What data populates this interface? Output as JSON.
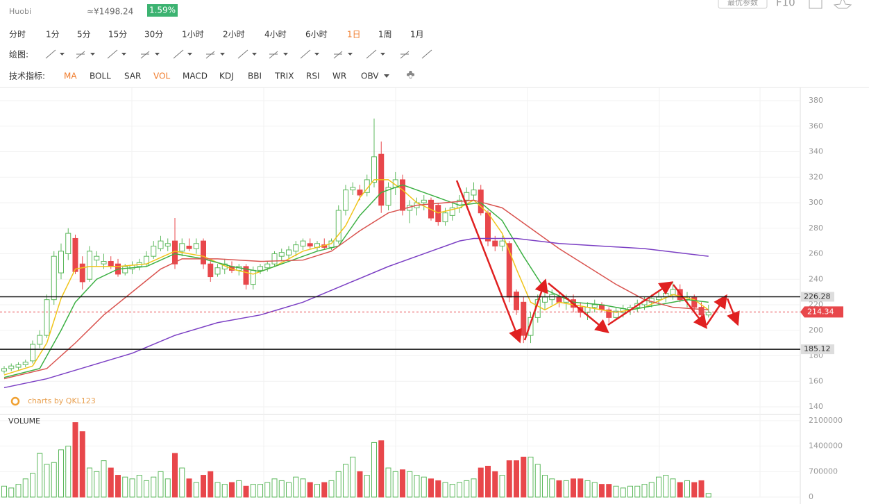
{
  "header": {
    "source": "Huobi",
    "cny": "≈¥1498.24",
    "change": "1.59%",
    "best_params": "最优参数",
    "f10": "F10"
  },
  "tabs": [
    "分时",
    "1分",
    "5分",
    "15分",
    "30分",
    "1小时",
    "2小时",
    "4小时",
    "6小时",
    "1日",
    "1周",
    "1月"
  ],
  "active_tab": 9,
  "draw_label": "绘图:",
  "indicator_label": "技术指标:",
  "indicators": [
    "MA",
    "BOLL",
    "SAR",
    "VOL",
    "MACD",
    "KDJ",
    "BBI",
    "TRIX",
    "RSI",
    "WR",
    "OBV"
  ],
  "active_indicators": [
    0,
    3
  ],
  "watermark": "charts by QKL123",
  "chart_data": {
    "type": "candlestick",
    "ylim": [
      140,
      380
    ],
    "yticks": [
      140,
      160,
      180,
      200,
      220,
      240,
      260,
      280,
      300,
      320,
      340,
      360,
      380
    ],
    "up_color": "#5cb85c",
    "down_color": "#e8474b",
    "candles": [
      [
        168,
        172,
        166,
        170
      ],
      [
        170,
        174,
        168,
        172
      ],
      [
        171,
        175,
        169,
        173
      ],
      [
        173,
        177,
        171,
        175
      ],
      [
        176,
        192,
        174,
        189
      ],
      [
        189,
        200,
        186,
        196
      ],
      [
        196,
        228,
        194,
        224
      ],
      [
        224,
        262,
        220,
        258
      ],
      [
        245,
        268,
        240,
        262
      ],
      [
        260,
        280,
        255,
        276
      ],
      [
        272,
        275,
        244,
        246
      ],
      [
        252,
        258,
        232,
        238
      ],
      [
        240,
        266,
        238,
        262
      ],
      [
        255,
        262,
        250,
        258
      ],
      [
        252,
        260,
        248,
        254
      ],
      [
        254,
        258,
        248,
        250
      ],
      [
        252,
        256,
        242,
        244
      ],
      [
        245,
        252,
        243,
        250
      ],
      [
        248,
        254,
        244,
        251
      ],
      [
        250,
        256,
        247,
        253
      ],
      [
        252,
        262,
        250,
        258
      ],
      [
        258,
        270,
        256,
        266
      ],
      [
        264,
        274,
        262,
        270
      ],
      [
        266,
        272,
        262,
        268
      ],
      [
        270,
        288,
        248,
        252
      ],
      [
        262,
        272,
        258,
        268
      ],
      [
        266,
        272,
        262,
        264
      ],
      [
        264,
        272,
        260,
        268
      ],
      [
        270,
        272,
        248,
        252
      ],
      [
        252,
        254,
        238,
        242
      ],
      [
        244,
        252,
        242,
        249
      ],
      [
        248,
        256,
        244,
        252
      ],
      [
        250,
        254,
        245,
        247
      ],
      [
        247,
        252,
        243,
        250
      ],
      [
        250,
        252,
        232,
        236
      ],
      [
        236,
        250,
        232,
        247
      ],
      [
        247,
        252,
        244,
        250
      ],
      [
        249,
        254,
        246,
        252
      ],
      [
        252,
        262,
        250,
        260
      ],
      [
        258,
        264,
        254,
        261
      ],
      [
        259,
        266,
        256,
        263
      ],
      [
        262,
        270,
        258,
        267
      ],
      [
        266,
        272,
        263,
        270
      ],
      [
        268,
        272,
        264,
        266
      ],
      [
        265,
        270,
        262,
        268
      ],
      [
        267,
        272,
        263,
        265
      ],
      [
        265,
        272,
        263,
        270
      ],
      [
        270,
        298,
        268,
        294
      ],
      [
        294,
        314,
        290,
        310
      ],
      [
        310,
        316,
        306,
        312
      ],
      [
        310,
        314,
        302,
        306
      ],
      [
        308,
        322,
        305,
        318
      ],
      [
        316,
        366,
        312,
        336
      ],
      [
        338,
        348,
        292,
        298
      ],
      [
        298,
        316,
        294,
        312
      ],
      [
        312,
        324,
        306,
        318
      ],
      [
        318,
        322,
        290,
        294
      ],
      [
        294,
        302,
        284,
        298
      ],
      [
        296,
        304,
        290,
        300
      ],
      [
        300,
        306,
        294,
        302
      ],
      [
        302,
        304,
        286,
        288
      ],
      [
        298,
        300,
        282,
        285
      ],
      [
        285,
        296,
        282,
        292
      ],
      [
        290,
        300,
        286,
        296
      ],
      [
        296,
        306,
        292,
        302
      ],
      [
        302,
        312,
        298,
        308
      ],
      [
        306,
        316,
        302,
        310
      ],
      [
        310,
        314,
        290,
        292
      ],
      [
        292,
        294,
        266,
        270
      ],
      [
        270,
        274,
        262,
        266
      ],
      [
        266,
        274,
        262,
        270
      ],
      [
        268,
        270,
        222,
        226
      ],
      [
        230,
        232,
        212,
        216
      ],
      [
        222,
        226,
        190,
        196
      ],
      [
        196,
        214,
        190,
        210
      ],
      [
        210,
        228,
        206,
        224
      ],
      [
        222,
        230,
        216,
        226
      ],
      [
        224,
        232,
        220,
        228
      ],
      [
        226,
        230,
        218,
        222
      ],
      [
        222,
        228,
        216,
        225
      ],
      [
        224,
        228,
        214,
        218
      ],
      [
        218,
        222,
        210,
        214
      ],
      [
        214,
        222,
        208,
        218
      ],
      [
        218,
        224,
        214,
        220
      ],
      [
        220,
        222,
        214,
        216
      ],
      [
        216,
        218,
        206,
        210
      ],
      [
        210,
        218,
        208,
        215
      ],
      [
        214,
        220,
        210,
        217
      ],
      [
        216,
        220,
        212,
        218
      ],
      [
        218,
        224,
        214,
        221
      ],
      [
        220,
        226,
        216,
        223
      ],
      [
        222,
        228,
        218,
        225
      ],
      [
        224,
        230,
        220,
        226
      ],
      [
        226,
        232,
        222,
        229
      ],
      [
        228,
        238,
        224,
        232
      ],
      [
        232,
        236,
        222,
        224
      ],
      [
        224,
        230,
        218,
        226
      ],
      [
        226,
        228,
        214,
        218
      ],
      [
        218,
        222,
        208,
        212
      ],
      [
        212,
        220,
        210,
        214
      ]
    ],
    "ma_lines": [
      {
        "color": "#f0c419",
        "points": [
          [
            0,
            165
          ],
          [
            4,
            172
          ],
          [
            6,
            190
          ],
          [
            8,
            225
          ],
          [
            10,
            248
          ],
          [
            12,
            250
          ],
          [
            16,
            250
          ],
          [
            20,
            252
          ],
          [
            24,
            262
          ],
          [
            28,
            258
          ],
          [
            32,
            248
          ],
          [
            35,
            244
          ],
          [
            38,
            250
          ],
          [
            42,
            262
          ],
          [
            46,
            268
          ],
          [
            48,
            282
          ],
          [
            50,
            304
          ],
          [
            52,
            318
          ],
          [
            54,
            318
          ],
          [
            56,
            310
          ],
          [
            58,
            300
          ],
          [
            61,
            292
          ],
          [
            64,
            296
          ],
          [
            66,
            302
          ],
          [
            68,
            292
          ],
          [
            70,
            276
          ],
          [
            72,
            248
          ],
          [
            74,
            222
          ],
          [
            76,
            216
          ],
          [
            78,
            222
          ],
          [
            82,
            218
          ],
          [
            86,
            214
          ],
          [
            90,
            218
          ],
          [
            94,
            228
          ],
          [
            97,
            224
          ],
          [
            99,
            216
          ]
        ]
      },
      {
        "color": "#3cb043",
        "points": [
          [
            0,
            163
          ],
          [
            5,
            170
          ],
          [
            8,
            200
          ],
          [
            10,
            222
          ],
          [
            13,
            240
          ],
          [
            16,
            248
          ],
          [
            20,
            250
          ],
          [
            24,
            260
          ],
          [
            28,
            256
          ],
          [
            32,
            250
          ],
          [
            36,
            246
          ],
          [
            40,
            254
          ],
          [
            44,
            262
          ],
          [
            47,
            266
          ],
          [
            50,
            290
          ],
          [
            53,
            308
          ],
          [
            56,
            314
          ],
          [
            60,
            306
          ],
          [
            64,
            298
          ],
          [
            67,
            300
          ],
          [
            70,
            286
          ],
          [
            73,
            258
          ],
          [
            76,
            232
          ],
          [
            80,
            222
          ],
          [
            84,
            220
          ],
          [
            88,
            216
          ],
          [
            92,
            220
          ],
          [
            96,
            224
          ],
          [
            99,
            222
          ]
        ]
      },
      {
        "color": "#d9534f",
        "points": [
          [
            0,
            162
          ],
          [
            6,
            170
          ],
          [
            10,
            190
          ],
          [
            14,
            212
          ],
          [
            18,
            230
          ],
          [
            22,
            248
          ],
          [
            25,
            256
          ],
          [
            30,
            256
          ],
          [
            36,
            254
          ],
          [
            42,
            255
          ],
          [
            46,
            262
          ],
          [
            50,
            278
          ],
          [
            54,
            292
          ],
          [
            58,
            298
          ],
          [
            62,
            300
          ],
          [
            66,
            302
          ],
          [
            70,
            296
          ],
          [
            74,
            280
          ],
          [
            78,
            264
          ],
          [
            82,
            250
          ],
          [
            86,
            236
          ],
          [
            90,
            224
          ],
          [
            94,
            218
          ],
          [
            99,
            216
          ]
        ]
      },
      {
        "color": "#7b3fc4",
        "points": [
          [
            0,
            155
          ],
          [
            6,
            162
          ],
          [
            12,
            172
          ],
          [
            18,
            182
          ],
          [
            24,
            196
          ],
          [
            30,
            206
          ],
          [
            36,
            212
          ],
          [
            42,
            222
          ],
          [
            48,
            236
          ],
          [
            54,
            250
          ],
          [
            60,
            262
          ],
          [
            64,
            270
          ],
          [
            66,
            272
          ],
          [
            72,
            272
          ],
          [
            78,
            268
          ],
          [
            84,
            266
          ],
          [
            90,
            264
          ],
          [
            96,
            260
          ],
          [
            99,
            258
          ]
        ]
      }
    ],
    "hlines": [
      226.28,
      185.12
    ],
    "last_price": 214.34,
    "volume_title": "VOLUME",
    "vlim": [
      0,
      2100000
    ],
    "vticks": [
      0,
      700000,
      1400000,
      2100000
    ],
    "volume": [
      300000,
      250000,
      350000,
      500000,
      650000,
      1200000,
      900000,
      950000,
      1300000,
      1400000,
      2050000,
      1800000,
      800000,
      700000,
      1000000,
      800000,
      600000,
      550000,
      500000,
      600000,
      450000,
      550000,
      700000,
      500000,
      1200000,
      800000,
      500000,
      400000,
      600000,
      700000,
      400000,
      350000,
      400000,
      450000,
      300000,
      350000,
      350000,
      400000,
      500000,
      450000,
      400000,
      550000,
      500000,
      400000,
      350000,
      400000,
      450000,
      700000,
      900000,
      1100000,
      700000,
      600000,
      1500000,
      1550000,
      800000,
      700000,
      750000,
      700000,
      600000,
      550000,
      500000,
      450000,
      400000,
      350000,
      400000,
      450000,
      500000,
      800000,
      850000,
      700000,
      600000,
      1000000,
      1000000,
      1100000,
      1100000,
      900000,
      600000,
      500000,
      450000,
      450000,
      500000,
      500000,
      450000,
      400000,
      350000,
      350000,
      300000,
      250000,
      300000,
      300000,
      350000,
      400000,
      550000,
      600000,
      500000,
      400000,
      450000,
      400000,
      450000,
      100000
    ]
  }
}
